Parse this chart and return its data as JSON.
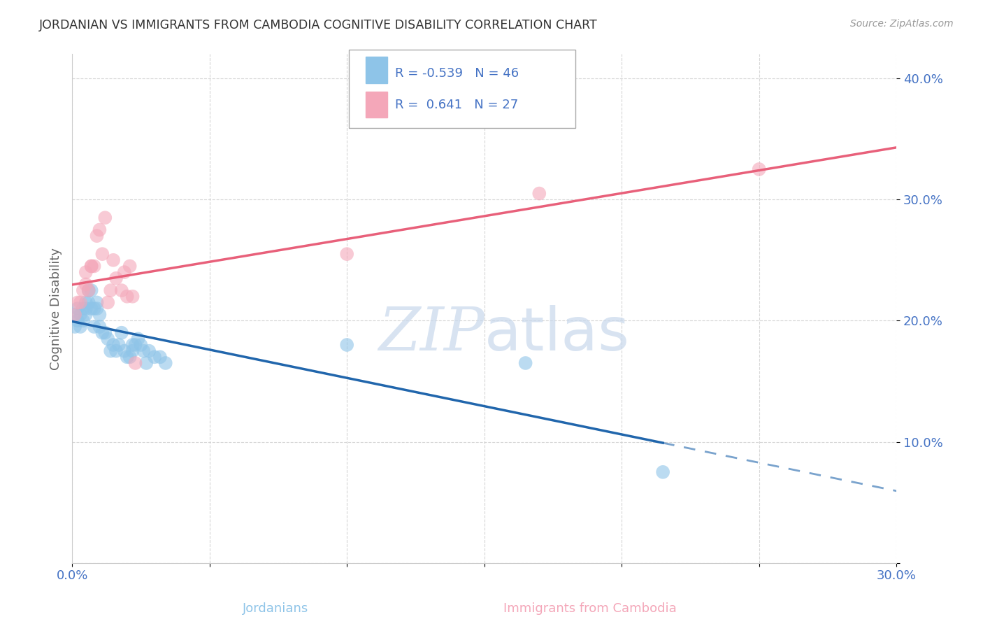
{
  "title": "JORDANIAN VS IMMIGRANTS FROM CAMBODIA COGNITIVE DISABILITY CORRELATION CHART",
  "source": "Source: ZipAtlas.com",
  "xlabel_jordanians": "Jordanians",
  "xlabel_cambodia": "Immigrants from Cambodia",
  "ylabel": "Cognitive Disability",
  "xlim": [
    0.0,
    0.3
  ],
  "ylim": [
    0.0,
    0.42
  ],
  "r_jordanian": -0.539,
  "n_jordanian": 46,
  "r_cambodia": 0.641,
  "n_cambodia": 27,
  "color_jordanian": "#8ec4e8",
  "color_cambodia": "#f4a7b9",
  "color_jordanian_line": "#2166ac",
  "color_cambodia_line": "#e8607a",
  "jordanian_x": [
    0.001,
    0.001,
    0.002,
    0.002,
    0.003,
    0.003,
    0.004,
    0.004,
    0.005,
    0.005,
    0.005,
    0.006,
    0.006,
    0.007,
    0.007,
    0.008,
    0.008,
    0.009,
    0.009,
    0.01,
    0.01,
    0.011,
    0.012,
    0.013,
    0.014,
    0.015,
    0.016,
    0.017,
    0.018,
    0.019,
    0.02,
    0.021,
    0.022,
    0.022,
    0.023,
    0.024,
    0.025,
    0.026,
    0.027,
    0.028,
    0.03,
    0.032,
    0.034,
    0.1,
    0.165,
    0.215
  ],
  "jordanian_y": [
    0.195,
    0.205,
    0.2,
    0.21,
    0.195,
    0.205,
    0.2,
    0.21,
    0.205,
    0.21,
    0.215,
    0.215,
    0.225,
    0.21,
    0.225,
    0.195,
    0.21,
    0.215,
    0.21,
    0.205,
    0.195,
    0.19,
    0.19,
    0.185,
    0.175,
    0.18,
    0.175,
    0.18,
    0.19,
    0.175,
    0.17,
    0.17,
    0.175,
    0.18,
    0.18,
    0.185,
    0.18,
    0.175,
    0.165,
    0.175,
    0.17,
    0.17,
    0.165,
    0.18,
    0.165,
    0.075
  ],
  "cambodia_x": [
    0.001,
    0.002,
    0.003,
    0.004,
    0.005,
    0.005,
    0.006,
    0.007,
    0.007,
    0.008,
    0.009,
    0.01,
    0.011,
    0.012,
    0.013,
    0.014,
    0.015,
    0.016,
    0.018,
    0.019,
    0.02,
    0.021,
    0.022,
    0.023,
    0.1,
    0.17,
    0.25
  ],
  "cambodia_y": [
    0.205,
    0.215,
    0.215,
    0.225,
    0.23,
    0.24,
    0.225,
    0.245,
    0.245,
    0.245,
    0.27,
    0.275,
    0.255,
    0.285,
    0.215,
    0.225,
    0.25,
    0.235,
    0.225,
    0.24,
    0.22,
    0.245,
    0.22,
    0.165,
    0.255,
    0.305,
    0.325
  ],
  "background_color": "#ffffff",
  "grid_color": "#cccccc",
  "title_color": "#333333",
  "axis_label_color": "#666666",
  "tick_label_color": "#4472c4"
}
